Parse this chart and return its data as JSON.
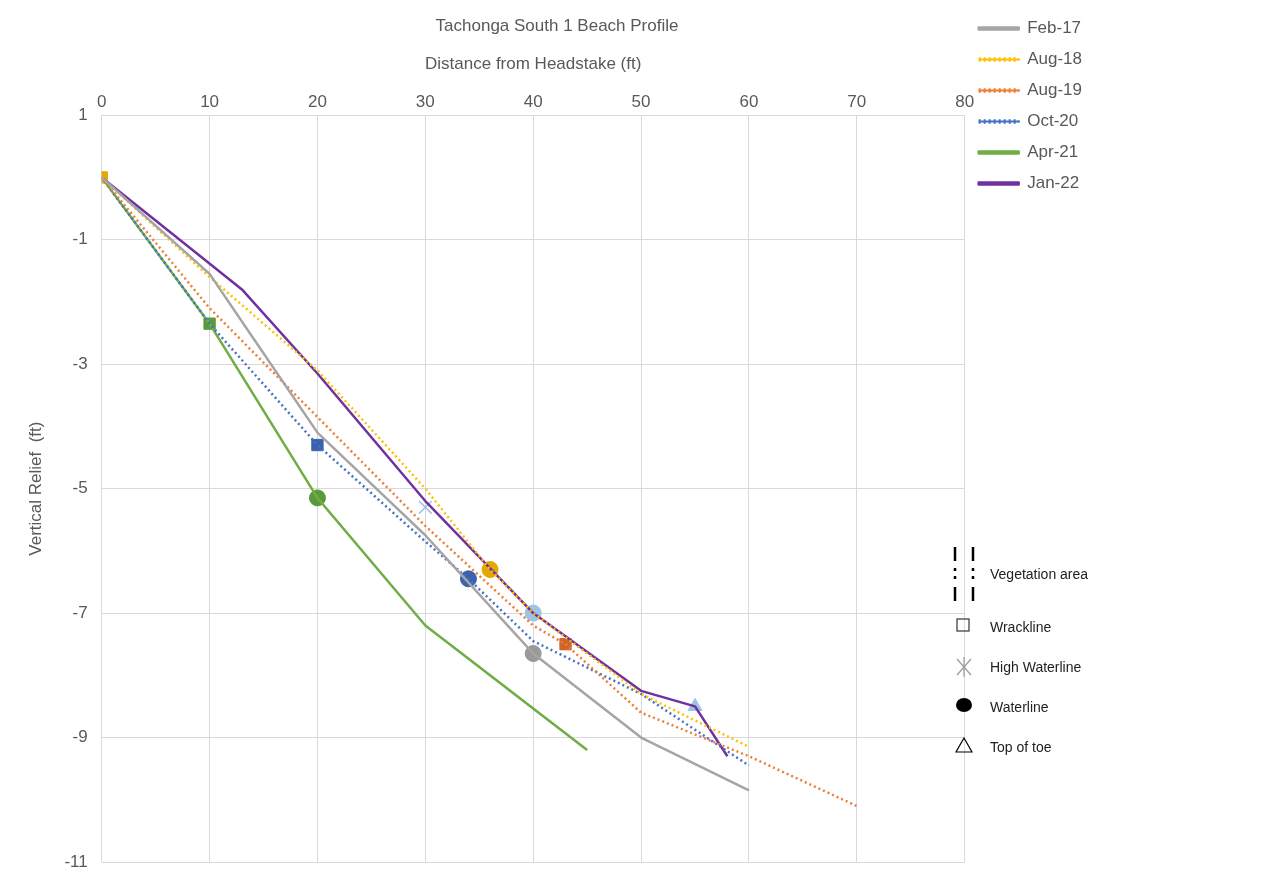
{
  "chart_data": {
    "type": "line",
    "title": "Tachonga South 1 Beach Profile",
    "xlabel": "Distance from Headstake (ft)",
    "ylabel": "Vertical Relief  (ft)",
    "xlim": [
      0,
      80
    ],
    "xticks": [
      0,
      10,
      20,
      30,
      40,
      50,
      60,
      70,
      80
    ],
    "ylim": [
      -11,
      1
    ],
    "yticks": [
      1,
      -1,
      -3,
      -5,
      -7,
      -9,
      -11
    ],
    "grid": true,
    "legend": "right",
    "series": [
      {
        "name": "Feb-17",
        "color": "#a5a5a5",
        "line_style": "solid",
        "marker": "none",
        "x": [
          0,
          10,
          20,
          30,
          40,
          50,
          60
        ],
        "values": [
          0,
          -1.55,
          -4.1,
          -5.75,
          -7.65,
          -9.0,
          -9.85
        ]
      },
      {
        "name": "Aug-18",
        "color": "#ffc000",
        "line_style": "dotted",
        "marker": "none",
        "x": [
          0,
          10,
          20,
          30,
          36,
          40,
          50,
          60
        ],
        "values": [
          0,
          -1.6,
          -3.1,
          -5.0,
          -6.3,
          -7.0,
          -8.3,
          -9.15
        ]
      },
      {
        "name": "Aug-19",
        "color": "#ed7d31",
        "line_style": "dotted",
        "marker": "none",
        "x": [
          0,
          10,
          20,
          30,
          40,
          43,
          50,
          60,
          70
        ],
        "values": [
          0,
          -2.1,
          -3.85,
          -5.6,
          -7.2,
          -7.5,
          -8.6,
          -9.3,
          -10.1
        ]
      },
      {
        "name": "Oct-20",
        "color": "#4472c4",
        "line_style": "dotted",
        "marker": "none",
        "x": [
          0,
          10,
          20,
          30,
          34,
          40,
          50,
          60
        ],
        "values": [
          0,
          -2.35,
          -4.3,
          -5.85,
          -6.45,
          -7.45,
          -8.3,
          -9.45
        ]
      },
      {
        "name": "Apr-21",
        "color": "#70ad47",
        "line_style": "solid",
        "marker": "none",
        "x": [
          0,
          10,
          20,
          30,
          45
        ],
        "values": [
          0,
          -2.35,
          -5.15,
          -7.2,
          -9.2
        ]
      },
      {
        "name": "Jan-22",
        "color": "#7030a0",
        "line_style": "solid",
        "marker": "none",
        "x": [
          0,
          13,
          20,
          30,
          40,
          50,
          55,
          58
        ],
        "values": [
          0,
          -1.8,
          -3.15,
          -5.2,
          -7.0,
          -8.25,
          -8.5,
          -9.3
        ]
      },
      {
        "type": "scatter",
        "marker": "square",
        "x": [
          0,
          10,
          20,
          43
        ],
        "values": [
          0,
          -2.35,
          -4.3,
          -7.5
        ],
        "colors": [
          "#e6a800",
          "#5b9a3a",
          "#3a62ad",
          "#d0652a"
        ]
      },
      {
        "type": "scatter",
        "marker": "circle",
        "x": [
          20,
          34,
          36,
          40,
          40
        ],
        "values": [
          -5.15,
          -6.45,
          -6.3,
          -7.0,
          -7.65
        ],
        "colors": [
          "#5b9a3a",
          "#3a62ad",
          "#e6a800",
          "#9dc3e6",
          "#999999"
        ]
      },
      {
        "type": "scatter",
        "marker": "cross",
        "x": [
          30
        ],
        "values": [
          -5.3
        ],
        "colors": [
          "#9dc3e6"
        ]
      },
      {
        "type": "scatter",
        "marker": "triangle",
        "x": [
          55
        ],
        "values": [
          -8.5
        ],
        "colors": [
          "#9dc3e6"
        ]
      }
    ],
    "annotations": [
      "Vegetation area",
      "Wrackline",
      "High Waterline",
      "Waterline",
      "Top of toe"
    ]
  }
}
